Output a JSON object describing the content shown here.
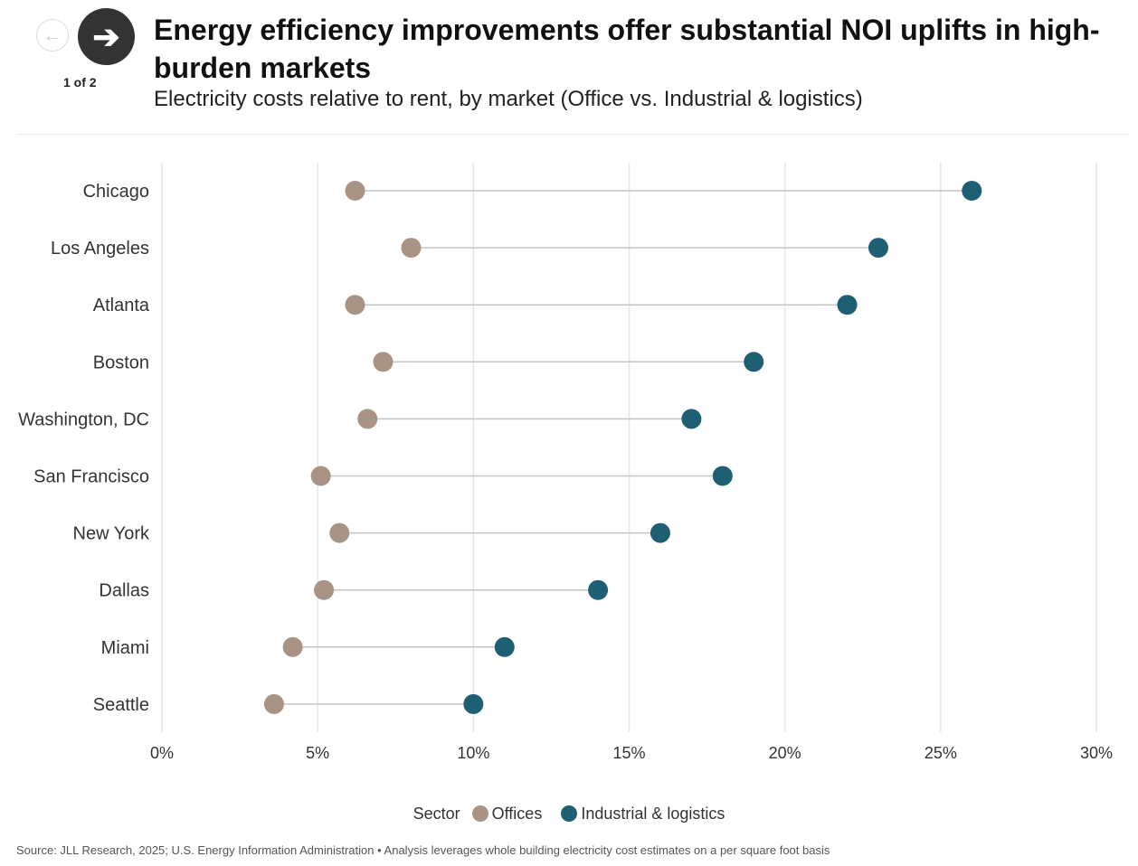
{
  "nav": {
    "prev": "←",
    "next": "➔",
    "pager": "1 of 2"
  },
  "header": {
    "title": "Energy efficiency improvements offer substantial NOI uplifts in high-burden markets",
    "subtitle": "Electricity costs relative to rent, by market (Office vs. Industrial & logistics)"
  },
  "chart_data": {
    "type": "dumbbell",
    "categories": [
      "Chicago",
      "Los Angeles",
      "Atlanta",
      "Boston",
      "Washington, DC",
      "San Francisco",
      "New York",
      "Dallas",
      "Miami",
      "Seattle"
    ],
    "series": [
      {
        "name": "Offices",
        "color": "#a89384",
        "values": [
          6.2,
          8.0,
          6.2,
          7.1,
          6.6,
          5.1,
          5.7,
          5.2,
          4.2,
          3.6
        ]
      },
      {
        "name": "Industrial & logistics",
        "color": "#1f5f73",
        "values": [
          26.0,
          23.0,
          22.0,
          19.0,
          17.0,
          18.0,
          16.0,
          14.0,
          11.0,
          10.0
        ]
      }
    ],
    "xlim": [
      0,
      30
    ],
    "xticks": [
      0,
      5,
      10,
      15,
      20,
      25,
      30
    ],
    "xtick_labels": [
      "0%",
      "5%",
      "10%",
      "15%",
      "20%",
      "25%",
      "30%"
    ],
    "legend_title": "Sector",
    "legend_position": "bottom"
  },
  "source": "Source: JLL Research, 2025; U.S. Energy Information Administration • Analysis leverages whole building electricity cost estimates on a per square foot basis"
}
